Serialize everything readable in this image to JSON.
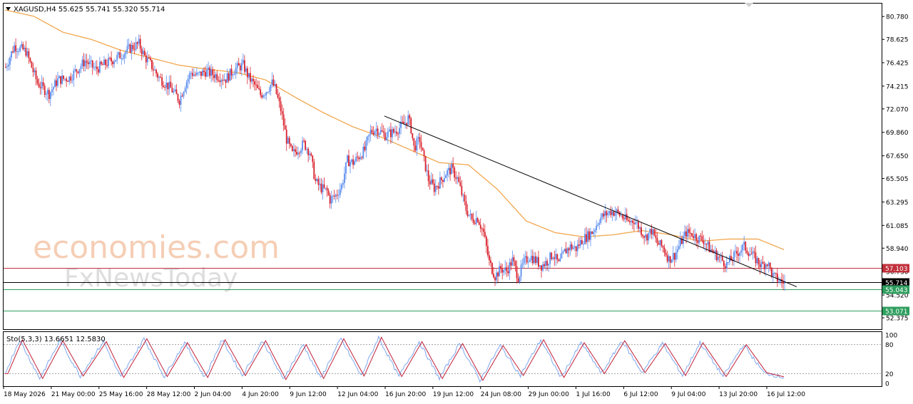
{
  "chart_data": {
    "type": "candlestick",
    "title": "XAGUSD,H4  55.625 55.741 55.320 55.714",
    "symbol": "XAGUSD",
    "timeframe": "H4",
    "ohlc_header": {
      "open": 55.625,
      "high": 55.741,
      "low": 55.32,
      "close": 55.714
    },
    "watermark": {
      "line1": "economies.com",
      "line2": "FxNewsToday"
    },
    "price_axis": {
      "ylim": [
        51.3,
        82.0
      ],
      "ticks": [
        "80.780",
        "78.625",
        "76.425",
        "74.215",
        "72.070",
        "69.860",
        "67.650",
        "65.505",
        "63.295",
        "61.085",
        "58.940",
        "56.730",
        "54.520",
        "52.375"
      ]
    },
    "time_axis": {
      "labels": [
        "18 May 2026",
        "21 May 00:00",
        "25 May 16:00",
        "28 May 12:00",
        "2 Jun 04:00",
        "4 Jun 20:00",
        "9 Jun 12:00",
        "12 Jun 04:00",
        "16 Jun 20:00",
        "19 Jun 12:00",
        "24 Jun 08:00",
        "29 Jun 00:00",
        "1 Jul 16:00",
        "6 Jul 12:00",
        "9 Jul 04:00",
        "13 Jul 20:00",
        "16 Jul 12:00"
      ]
    },
    "colors": {
      "up": "#5b8def",
      "down": "#d9202b",
      "ma": "#f0a040",
      "trendline": "#000000",
      "resistance": "#c0303a",
      "support": "#2e9e5e",
      "current": "#000000"
    },
    "price_levels": [
      {
        "value": 57.103,
        "label": "57.103",
        "color": "#c0303a"
      },
      {
        "value": 55.714,
        "label": "55.714",
        "color": "#000000"
      },
      {
        "value": 55.043,
        "label": "55.043",
        "color": "#2e9e5e"
      },
      {
        "value": 53.071,
        "label": "53.071",
        "color": "#2e9e5e"
      }
    ],
    "trendline": {
      "start": {
        "x": "16 Jun 20:00",
        "y": 71.4
      },
      "end": {
        "x": "after 16 Jul 12:00",
        "y": 55.3
      }
    },
    "price_path": [
      [
        0,
        76.0
      ],
      [
        6,
        78.0
      ],
      [
        14,
        77.5
      ],
      [
        22,
        74.5
      ],
      [
        30,
        73.5
      ],
      [
        36,
        74.8
      ],
      [
        44,
        75.0
      ],
      [
        55,
        76.6
      ],
      [
        62,
        75.8
      ],
      [
        70,
        76.4
      ],
      [
        78,
        77.0
      ],
      [
        86,
        77.8
      ],
      [
        92,
        78.2
      ],
      [
        96,
        77.0
      ],
      [
        100,
        76.3
      ],
      [
        106,
        75.0
      ],
      [
        114,
        74.0
      ],
      [
        120,
        72.9
      ],
      [
        124,
        74.4
      ],
      [
        128,
        75.5
      ],
      [
        132,
        75.2
      ],
      [
        138,
        75.6
      ],
      [
        144,
        75.3
      ],
      [
        152,
        74.9
      ],
      [
        158,
        75.8
      ],
      [
        164,
        76.2
      ],
      [
        168,
        75.0
      ],
      [
        172,
        74.3
      ],
      [
        176,
        73.4
      ],
      [
        180,
        73.8
      ],
      [
        184,
        74.5
      ],
      [
        186,
        74.0
      ],
      [
        190,
        72.0
      ],
      [
        194,
        69.2
      ],
      [
        198,
        67.8
      ],
      [
        202,
        68.3
      ],
      [
        206,
        68.8
      ],
      [
        210,
        68.0
      ],
      [
        214,
        65.2
      ],
      [
        218,
        64.6
      ],
      [
        222,
        64.3
      ],
      [
        224,
        63.5
      ],
      [
        228,
        63.9
      ],
      [
        232,
        64.8
      ],
      [
        236,
        67.2
      ],
      [
        240,
        67.0
      ],
      [
        244,
        67.6
      ],
      [
        248,
        68.2
      ],
      [
        252,
        69.9
      ],
      [
        256,
        70.2
      ],
      [
        262,
        69.6
      ],
      [
        268,
        69.9
      ],
      [
        272,
        70.3
      ],
      [
        276,
        70.8
      ],
      [
        278,
        71.2
      ],
      [
        280,
        70.2
      ],
      [
        282,
        68.4
      ],
      [
        286,
        69.2
      ],
      [
        288,
        67.8
      ],
      [
        292,
        65.4
      ],
      [
        296,
        64.6
      ],
      [
        300,
        65.2
      ],
      [
        304,
        66.0
      ],
      [
        308,
        66.4
      ],
      [
        312,
        65.5
      ],
      [
        318,
        62.6
      ],
      [
        322,
        61.6
      ],
      [
        326,
        61.8
      ],
      [
        330,
        60.4
      ],
      [
        334,
        57.6
      ],
      [
        338,
        56.3
      ],
      [
        342,
        57.0
      ],
      [
        346,
        56.8
      ],
      [
        350,
        57.8
      ],
      [
        354,
        56.2
      ],
      [
        358,
        57.6
      ],
      [
        362,
        58.2
      ],
      [
        366,
        57.8
      ],
      [
        370,
        57.3
      ],
      [
        374,
        57.7
      ],
      [
        378,
        58.4
      ],
      [
        382,
        57.4
      ],
      [
        386,
        58.6
      ],
      [
        390,
        59.1
      ],
      [
        394,
        58.9
      ],
      [
        398,
        59.7
      ],
      [
        402,
        60.1
      ],
      [
        406,
        60.6
      ],
      [
        410,
        61.7
      ],
      [
        414,
        62.1
      ],
      [
        418,
        62.4
      ],
      [
        422,
        62.3
      ],
      [
        426,
        61.9
      ],
      [
        430,
        61.4
      ],
      [
        434,
        61.6
      ],
      [
        438,
        60.8
      ],
      [
        442,
        60.0
      ],
      [
        446,
        60.6
      ],
      [
        450,
        59.4
      ],
      [
        454,
        59.0
      ],
      [
        458,
        57.9
      ],
      [
        462,
        58.3
      ],
      [
        466,
        59.4
      ],
      [
        470,
        60.4
      ],
      [
        474,
        60.3
      ],
      [
        478,
        59.9
      ],
      [
        482,
        59.7
      ],
      [
        486,
        58.9
      ],
      [
        490,
        58.4
      ],
      [
        494,
        57.9
      ],
      [
        498,
        57.4
      ],
      [
        502,
        58.0
      ],
      [
        506,
        58.6
      ],
      [
        510,
        59.1
      ],
      [
        514,
        58.5
      ],
      [
        518,
        57.9
      ],
      [
        522,
        57.3
      ],
      [
        526,
        57.6
      ],
      [
        530,
        56.3
      ],
      [
        534,
        55.9
      ],
      [
        538,
        55.7
      ]
    ],
    "ma_path": [
      [
        0,
        81.4
      ],
      [
        20,
        80.8
      ],
      [
        40,
        79.3
      ],
      [
        60,
        78.6
      ],
      [
        80,
        77.6
      ],
      [
        100,
        76.9
      ],
      [
        120,
        76.2
      ],
      [
        140,
        75.8
      ],
      [
        160,
        75.5
      ],
      [
        180,
        74.8
      ],
      [
        200,
        73.2
      ],
      [
        220,
        71.7
      ],
      [
        240,
        70.4
      ],
      [
        260,
        69.4
      ],
      [
        280,
        68.2
      ],
      [
        300,
        67.0
      ],
      [
        320,
        66.8
      ],
      [
        340,
        64.5
      ],
      [
        360,
        61.5
      ],
      [
        380,
        60.4
      ],
      [
        400,
        60.0
      ],
      [
        420,
        60.2
      ],
      [
        440,
        60.6
      ],
      [
        460,
        60.2
      ],
      [
        480,
        59.6
      ],
      [
        500,
        59.8
      ],
      [
        520,
        59.8
      ],
      [
        538,
        58.8
      ]
    ],
    "stochastic": {
      "label": "Sto(5,3,3) 13.6651 12.5830",
      "k": 13.6651,
      "d": 12.583,
      "ylim": [
        0,
        100
      ],
      "levels": [
        20,
        80
      ],
      "ticks": [
        "100",
        "80",
        "20",
        "0"
      ],
      "waves": [
        [
          0,
          20
        ],
        [
          10,
          90
        ],
        [
          24,
          10
        ],
        [
          38,
          88
        ],
        [
          52,
          15
        ],
        [
          68,
          86
        ],
        [
          80,
          12
        ],
        [
          96,
          92
        ],
        [
          110,
          14
        ],
        [
          124,
          84
        ],
        [
          138,
          12
        ],
        [
          150,
          90
        ],
        [
          164,
          16
        ],
        [
          178,
          88
        ],
        [
          192,
          8
        ],
        [
          206,
          80
        ],
        [
          218,
          10
        ],
        [
          232,
          92
        ],
        [
          246,
          15
        ],
        [
          258,
          95
        ],
        [
          272,
          14
        ],
        [
          286,
          86
        ],
        [
          300,
          10
        ],
        [
          314,
          82
        ],
        [
          328,
          6
        ],
        [
          342,
          78
        ],
        [
          356,
          16
        ],
        [
          370,
          90
        ],
        [
          384,
          12
        ],
        [
          398,
          84
        ],
        [
          412,
          20
        ],
        [
          426,
          88
        ],
        [
          440,
          22
        ],
        [
          454,
          82
        ],
        [
          468,
          16
        ],
        [
          480,
          84
        ],
        [
          496,
          14
        ],
        [
          510,
          80
        ],
        [
          524,
          22
        ],
        [
          538,
          12
        ]
      ]
    }
  }
}
